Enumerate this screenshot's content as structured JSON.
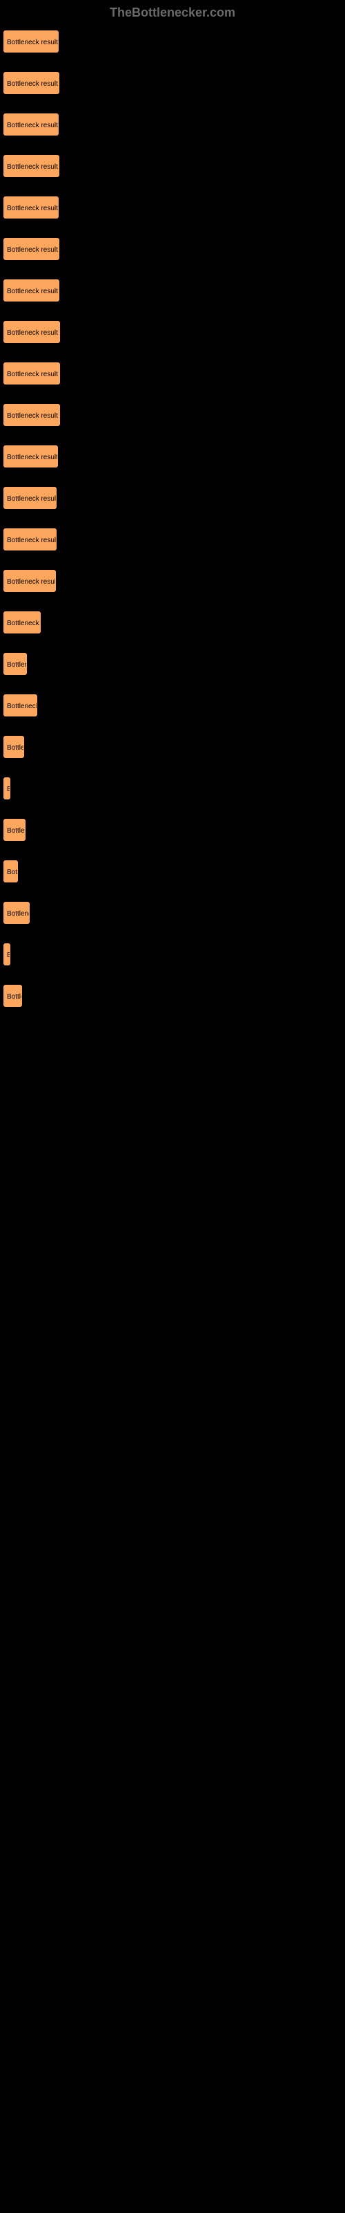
{
  "header": {
    "title": "TheBottlenecker.com"
  },
  "chart": {
    "bar_label": "Bottleneck result",
    "bar_color": "#fda65d",
    "background_color": "#000000",
    "bars": [
      {
        "width": 80
      },
      {
        "width": 81
      },
      {
        "width": 80
      },
      {
        "width": 81
      },
      {
        "width": 80
      },
      {
        "width": 81
      },
      {
        "width": 81
      },
      {
        "width": 82
      },
      {
        "width": 82
      },
      {
        "width": 82
      },
      {
        "width": 79
      },
      {
        "width": 77
      },
      {
        "width": 77
      },
      {
        "width": 76
      },
      {
        "width": 54
      },
      {
        "width": 34
      },
      {
        "width": 49
      },
      {
        "width": 30
      },
      {
        "width": 8
      },
      {
        "width": 32
      },
      {
        "width": 21
      },
      {
        "width": 38
      },
      {
        "width": 5
      },
      {
        "width": 27
      }
    ]
  }
}
